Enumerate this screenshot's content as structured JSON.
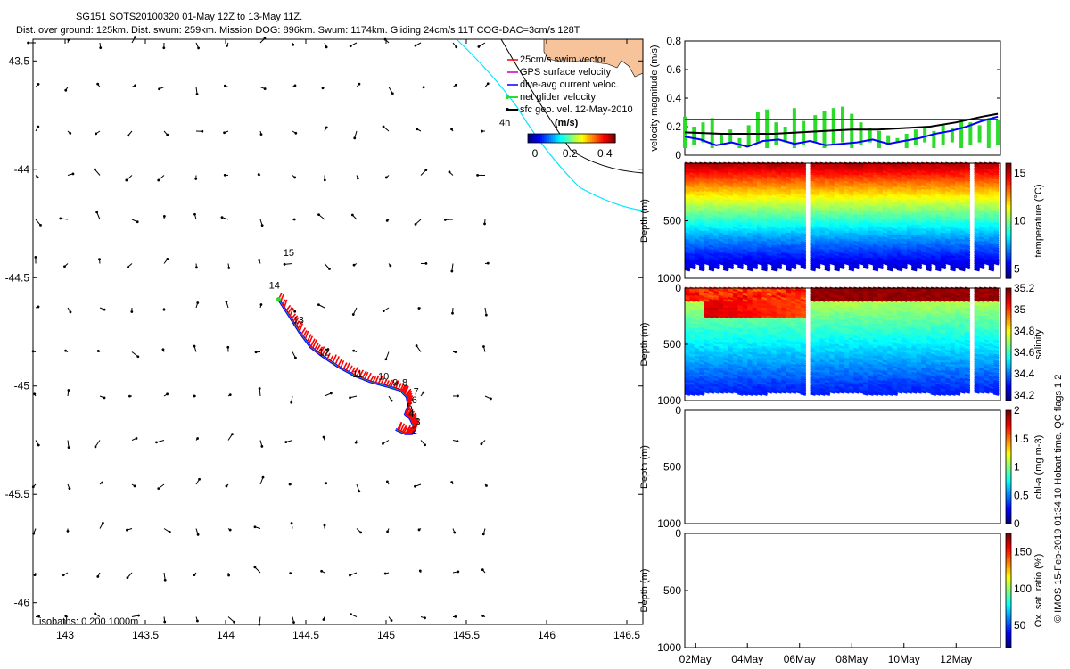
{
  "header": {
    "title_line1": "SG151 SOTS20100320 01-May 12Z to 13-May 11Z.",
    "title_line2": "Dist. over ground: 125km. Dist. swum: 259km. Mission DOG: 896km. Swum: 1174km. Gliding 24cm/s 11T COG-DAC=3cm/s 128T"
  },
  "colors": {
    "track": "#ff0000",
    "dac": "#0000ff",
    "land": "#f7c39a",
    "coast_line": "#00e5ff",
    "speed_bar": "#2bdc2b",
    "glide_line": "#ff0000",
    "sfc_line": "#000000"
  },
  "map": {
    "legend": [
      {
        "label": "25cm/s swim vector",
        "color": "#ff0000",
        "marker": "line"
      },
      {
        "label": "GPS surface velocity",
        "color": "#c000c0",
        "marker": "line"
      },
      {
        "label": "dive-avg current veloc.",
        "color": "#0000ff",
        "marker": "line"
      },
      {
        "label": "net glider velocity",
        "color": "#2bdc2b",
        "marker": "arrow"
      },
      {
        "label": "sfc geo. vel. 12-May-2010",
        "color": "#000000",
        "marker": "arrow"
      }
    ],
    "colorbar_unit": "(m/s)",
    "colorbar_ticks": [
      "0",
      "0.2",
      "0.4"
    ],
    "time_label": "4h",
    "isobaths_label": "isobaths: 0   200  1000m",
    "x_ticks": [
      "143",
      "143.5",
      "144",
      "144.5",
      "145",
      "145.5",
      "146",
      "146.5"
    ],
    "y_ticks": [
      "-43.5",
      "-44",
      "-44.5",
      "-45",
      "-45.5",
      "-46"
    ],
    "day_labels": [
      {
        "text": "15",
        "lon": 144.36,
        "lat": -44.4
      },
      {
        "text": "14",
        "lon": 144.27,
        "lat": -44.55
      },
      {
        "text": "13",
        "lon": 144.42,
        "lat": -44.71
      },
      {
        "text": "12",
        "lon": 144.58,
        "lat": -44.86
      },
      {
        "text": "11",
        "lon": 144.79,
        "lat": -44.96
      },
      {
        "text": "10",
        "lon": 144.95,
        "lat": -44.97
      },
      {
        "text": "9",
        "lon": 145.04,
        "lat": -45.0
      },
      {
        "text": "8",
        "lon": 145.1,
        "lat": -45.0
      },
      {
        "text": "7",
        "lon": 145.17,
        "lat": -45.04
      },
      {
        "text": "6",
        "lon": 145.16,
        "lat": -45.08
      },
      {
        "text": "5",
        "lon": 145.13,
        "lat": -45.11
      },
      {
        "text": "4",
        "lon": 145.14,
        "lat": -45.14
      },
      {
        "text": "3",
        "lon": 145.18,
        "lat": -45.18
      },
      {
        "text": "2",
        "lon": 145.16,
        "lat": -45.22
      }
    ]
  },
  "chart_data": [
    {
      "type": "scatter",
      "title": "SG151 SOTS20100320 01-May 12Z to 13-May 11Z.",
      "xlim": [
        142.8,
        146.6
      ],
      "ylim": [
        -46.1,
        -43.4
      ],
      "glider_track": {
        "lon": [
          144.33,
          144.4,
          144.46,
          144.53,
          144.6,
          144.7,
          144.8,
          144.9,
          145.0,
          145.09,
          145.13,
          145.14,
          145.12,
          145.15,
          145.17,
          145.18,
          145.16,
          145.12,
          145.06
        ],
        "lat": [
          -44.6,
          -44.68,
          -44.75,
          -44.82,
          -44.86,
          -44.91,
          -44.95,
          -44.98,
          -45.0,
          -45.02,
          -45.05,
          -45.09,
          -45.13,
          -45.15,
          -45.18,
          -45.2,
          -45.22,
          -45.22,
          -45.2
        ]
      }
    },
    {
      "type": "line",
      "ylabel": "velocity magnitude (m/s)",
      "ylim": [
        0,
        0.8
      ],
      "y_ticks": [
        "0",
        "0.2",
        "0.4",
        "0.6",
        "0.8"
      ],
      "xlim_days": [
        1.6,
        13.7
      ],
      "series": [
        {
          "name": "glide speed",
          "x": [
            1.6,
            13.6
          ],
          "values": [
            0.25,
            0.25
          ]
        },
        {
          "name": "surface geostrophic",
          "x": [
            1.6,
            3,
            4,
            5,
            6,
            7,
            8,
            9,
            10,
            11,
            12,
            13,
            13.6
          ],
          "values": [
            0.16,
            0.15,
            0.15,
            0.15,
            0.16,
            0.17,
            0.18,
            0.18,
            0.19,
            0.2,
            0.23,
            0.27,
            0.29
          ]
        },
        {
          "name": "dive-avg current",
          "x": [
            1.6,
            2.2,
            2.8,
            3.4,
            4.0,
            4.6,
            5.2,
            5.8,
            6.4,
            7.0,
            7.6,
            8.2,
            8.8,
            9.4,
            10.0,
            10.6,
            11.2,
            11.8,
            12.4,
            13.0,
            13.6
          ],
          "values": [
            0.13,
            0.11,
            0.07,
            0.09,
            0.06,
            0.1,
            0.11,
            0.08,
            0.1,
            0.07,
            0.08,
            0.09,
            0.11,
            0.08,
            0.1,
            0.12,
            0.15,
            0.17,
            0.2,
            0.24,
            0.27
          ]
        },
        {
          "name": "net glider velocity",
          "x": [
            1.6,
            1.95,
            2.3,
            2.65,
            3.0,
            3.35,
            3.7,
            4.05,
            4.4,
            4.75,
            5.1,
            5.45,
            5.8,
            6.15,
            6.6,
            6.95,
            7.3,
            7.65,
            8.0,
            8.35,
            8.7,
            9.05,
            9.4,
            9.75,
            10.1,
            10.45,
            10.8,
            11.15,
            11.5,
            11.85,
            12.2,
            12.55,
            12.9,
            13.25,
            13.6
          ],
          "values": [
            0.27,
            0.2,
            0.23,
            0.26,
            0.15,
            0.18,
            0.12,
            0.21,
            0.3,
            0.32,
            0.23,
            0.2,
            0.33,
            0.24,
            0.28,
            0.31,
            0.33,
            0.34,
            0.29,
            0.23,
            0.19,
            0.17,
            0.14,
            0.12,
            0.15,
            0.18,
            0.2,
            0.17,
            0.22,
            0.19,
            0.24,
            0.23,
            0.21,
            0.26,
            0.25
          ]
        }
      ]
    },
    {
      "type": "heatmap",
      "ylabel": "Depth (m)",
      "colorbar_label": "temperature (°C)",
      "colorbar_ticks": [
        "5",
        "10",
        "15"
      ],
      "clim": [
        4,
        16
      ],
      "y_ticks": [
        "500",
        "1000"
      ],
      "ylim": [
        0,
        1000
      ]
    },
    {
      "type": "heatmap",
      "ylabel": "Depth (m)",
      "colorbar_label": "salinity",
      "colorbar_ticks": [
        "34.2",
        "34.4",
        "34.6",
        "34.8",
        "35",
        "35.2"
      ],
      "clim": [
        34.15,
        35.2
      ],
      "y_ticks": [
        "0",
        "500",
        "1000"
      ],
      "ylim": [
        0,
        1000
      ]
    },
    {
      "type": "heatmap",
      "ylabel": "Depth (m)",
      "colorbar_label": "chl-a (mg m-3)",
      "colorbar_ticks": [
        "0",
        "0.5",
        "1",
        "1.5",
        "2"
      ],
      "clim": [
        0,
        2
      ],
      "y_ticks": [
        "0",
        "500",
        "1000"
      ],
      "ylim": [
        0,
        1000
      ]
    },
    {
      "type": "heatmap",
      "ylabel": "Depth (m)",
      "colorbar_label": "Ox. sat. ratio (%)",
      "colorbar_ticks": [
        "50",
        "100",
        "150"
      ],
      "clim": [
        20,
        175
      ],
      "y_ticks": [
        "0",
        "500",
        "1000"
      ],
      "ylim": [
        0,
        1000
      ],
      "x_ticks": [
        "02May",
        "04May",
        "06May",
        "08May",
        "10May",
        "12May"
      ]
    }
  ],
  "side_note": "© IMOS 15-Feb-2019 01:34:10 Hobart time. QC flags 1  2"
}
